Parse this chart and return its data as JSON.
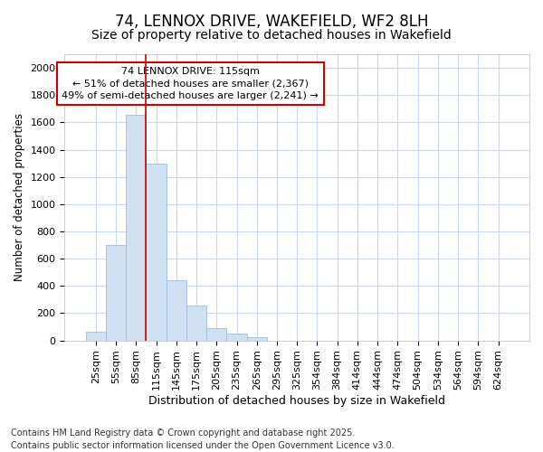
{
  "title": "74, LENNOX DRIVE, WAKEFIELD, WF2 8LH",
  "subtitle": "Size of property relative to detached houses in Wakefield",
  "xlabel": "Distribution of detached houses by size in Wakefield",
  "ylabel": "Number of detached properties",
  "categories": [
    "25sqm",
    "55sqm",
    "85sqm",
    "115sqm",
    "145sqm",
    "175sqm",
    "205sqm",
    "235sqm",
    "265sqm",
    "295sqm",
    "325sqm",
    "354sqm",
    "384sqm",
    "414sqm",
    "444sqm",
    "474sqm",
    "504sqm",
    "534sqm",
    "564sqm",
    "594sqm",
    "624sqm"
  ],
  "values": [
    65,
    700,
    1655,
    1300,
    440,
    255,
    90,
    50,
    25,
    0,
    0,
    0,
    0,
    0,
    0,
    0,
    0,
    0,
    0,
    0,
    0
  ],
  "bar_color": "#cfe0f0",
  "bar_edge_color": "#a0bcd8",
  "red_line_x": 3,
  "red_line_color": "#cc0000",
  "annotation_text": "74 LENNOX DRIVE: 115sqm\n← 51% of detached houses are smaller (2,367)\n49% of semi-detached houses are larger (2,241) →",
  "annotation_box_color": "#ffffff",
  "annotation_box_edge_color": "#cc0000",
  "ylim": [
    0,
    2100
  ],
  "yticks": [
    0,
    200,
    400,
    600,
    800,
    1000,
    1200,
    1400,
    1600,
    1800,
    2000
  ],
  "background_color": "#ffffff",
  "plot_background_color": "#ffffff",
  "grid_color": "#c8d8ee",
  "footnote": "Contains HM Land Registry data © Crown copyright and database right 2025.\nContains public sector information licensed under the Open Government Licence v3.0.",
  "title_fontsize": 12,
  "subtitle_fontsize": 10,
  "xlabel_fontsize": 9,
  "ylabel_fontsize": 8.5,
  "tick_fontsize": 8,
  "annotation_fontsize": 8,
  "footnote_fontsize": 7
}
